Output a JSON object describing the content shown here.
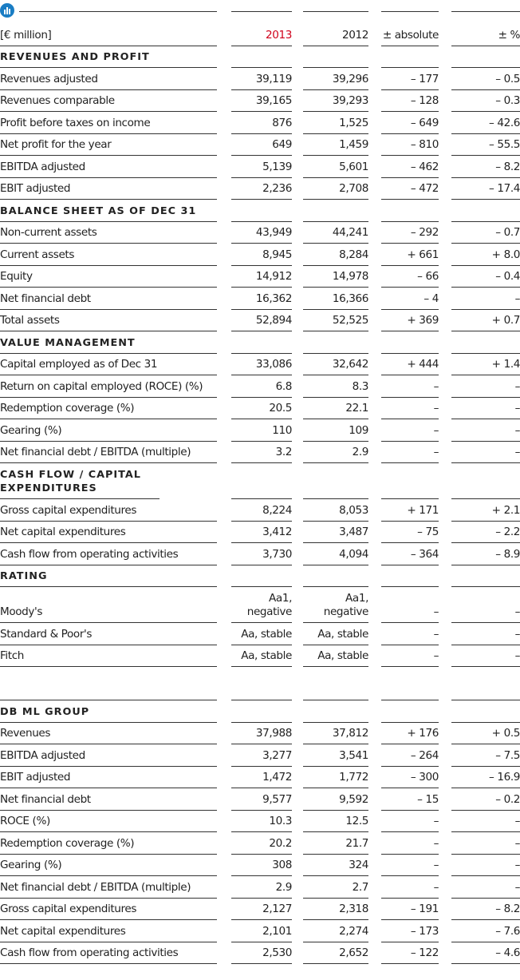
{
  "header": [
    "[€ million]",
    "2013",
    "2012",
    "± absolute",
    "± %"
  ],
  "sections": [
    {
      "title": "REVENUES AND PROFIT",
      "rows": [
        [
          "Revenues adjusted",
          "39,119",
          "39,296",
          "– 177",
          "– 0.5"
        ],
        [
          "Revenues comparable",
          "39,165",
          "39,293",
          "– 128",
          "– 0.3"
        ],
        [
          "Profit before taxes on income",
          "876",
          "1,525",
          "– 649",
          "– 42.6"
        ],
        [
          "Net profit for the year",
          "649",
          "1,459",
          "– 810",
          "– 55.5"
        ],
        [
          "EBITDA adjusted",
          "5,139",
          "5,601",
          "– 462",
          "– 8.2"
        ],
        [
          "EBIT adjusted",
          "2,236",
          "2,708",
          "– 472",
          "– 17.4"
        ]
      ]
    },
    {
      "title": "BALANCE SHEET AS OF DEC 31",
      "rows": [
        [
          "Non-current assets",
          "43,949",
          "44,241",
          "– 292",
          "– 0.7"
        ],
        [
          "Current assets",
          "8,945",
          "8,284",
          "+ 661",
          "+ 8.0"
        ],
        [
          "Equity",
          "14,912",
          "14,978",
          "– 66",
          "– 0.4"
        ],
        [
          "Net financial debt",
          "16,362",
          "16,366",
          "– 4",
          "–"
        ],
        [
          "Total assets",
          "52,894",
          "52,525",
          "+ 369",
          "+ 0.7"
        ]
      ]
    },
    {
      "title": "VALUE MANAGEMENT",
      "rows": [
        [
          "Capital employed as of Dec 31",
          "33,086",
          "32,642",
          "+ 444",
          "+ 1.4"
        ],
        [
          "Return on capital employed (ROCE) (%)",
          "6.8",
          "8.3",
          "–",
          "–"
        ],
        [
          "Redemption coverage (%)",
          "20.5",
          "22.1",
          "–",
          "–"
        ],
        [
          "Gearing (%)",
          "110",
          "109",
          "–",
          "–"
        ],
        [
          "Net financial debt / EBITDA (multiple)",
          "3.2",
          "2.9",
          "–",
          "–"
        ]
      ]
    },
    {
      "title": "CASH FLOW / CAPITAL EXPENDITURES",
      "rows": [
        [
          "Gross capital expenditures",
          "8,224",
          "8,053",
          "+ 171",
          "+ 2.1"
        ],
        [
          "Net capital expenditures",
          "3,412",
          "3,487",
          "– 75",
          "– 2.2"
        ],
        [
          "Cash flow from operating activities",
          "3,730",
          "4,094",
          "– 364",
          "– 8.9"
        ]
      ]
    },
    {
      "title": "RATING",
      "rows": [
        [
          "Moody's",
          "Aa1, negative",
          "Aa1, negative",
          "–",
          "–"
        ],
        [
          "Standard & Poor's",
          "Aa, stable",
          "Aa, stable",
          "–",
          "–"
        ],
        [
          "Fitch",
          "Aa, stable",
          "Aa, stable",
          "–",
          "–"
        ]
      ]
    },
    {
      "title": "DB ML GROUP",
      "rows": [
        [
          "Revenues",
          "37,988",
          "37,812",
          "+ 176",
          "+ 0.5"
        ],
        [
          "EBITDA adjusted",
          "3,277",
          "3,541",
          "– 264",
          "– 7.5"
        ],
        [
          "EBIT adjusted",
          "1,472",
          "1,772",
          "– 300",
          "– 16.9"
        ],
        [
          "Net financial debt",
          "9,577",
          "9,592",
          "– 15",
          "– 0.2"
        ],
        [
          "ROCE (%)",
          "10.3",
          "12.5",
          "–",
          "–"
        ],
        [
          "Redemption coverage (%)",
          "20.2",
          "21.7",
          "–",
          "–"
        ],
        [
          "Gearing (%)",
          "308",
          "324",
          "–",
          "–"
        ],
        [
          "Net financial debt / EBITDA (multiple)",
          "2.9",
          "2.7",
          "–",
          "–"
        ],
        [
          "Gross capital expenditures",
          "2,127",
          "2,318",
          "– 191",
          "– 8.2"
        ],
        [
          "Net capital expenditures",
          "2,101",
          "2,274",
          "– 173",
          "– 7.6"
        ],
        [
          "Cash flow from operating activities",
          "2,530",
          "2,652",
          "– 122",
          "– 4.6"
        ]
      ]
    }
  ]
}
